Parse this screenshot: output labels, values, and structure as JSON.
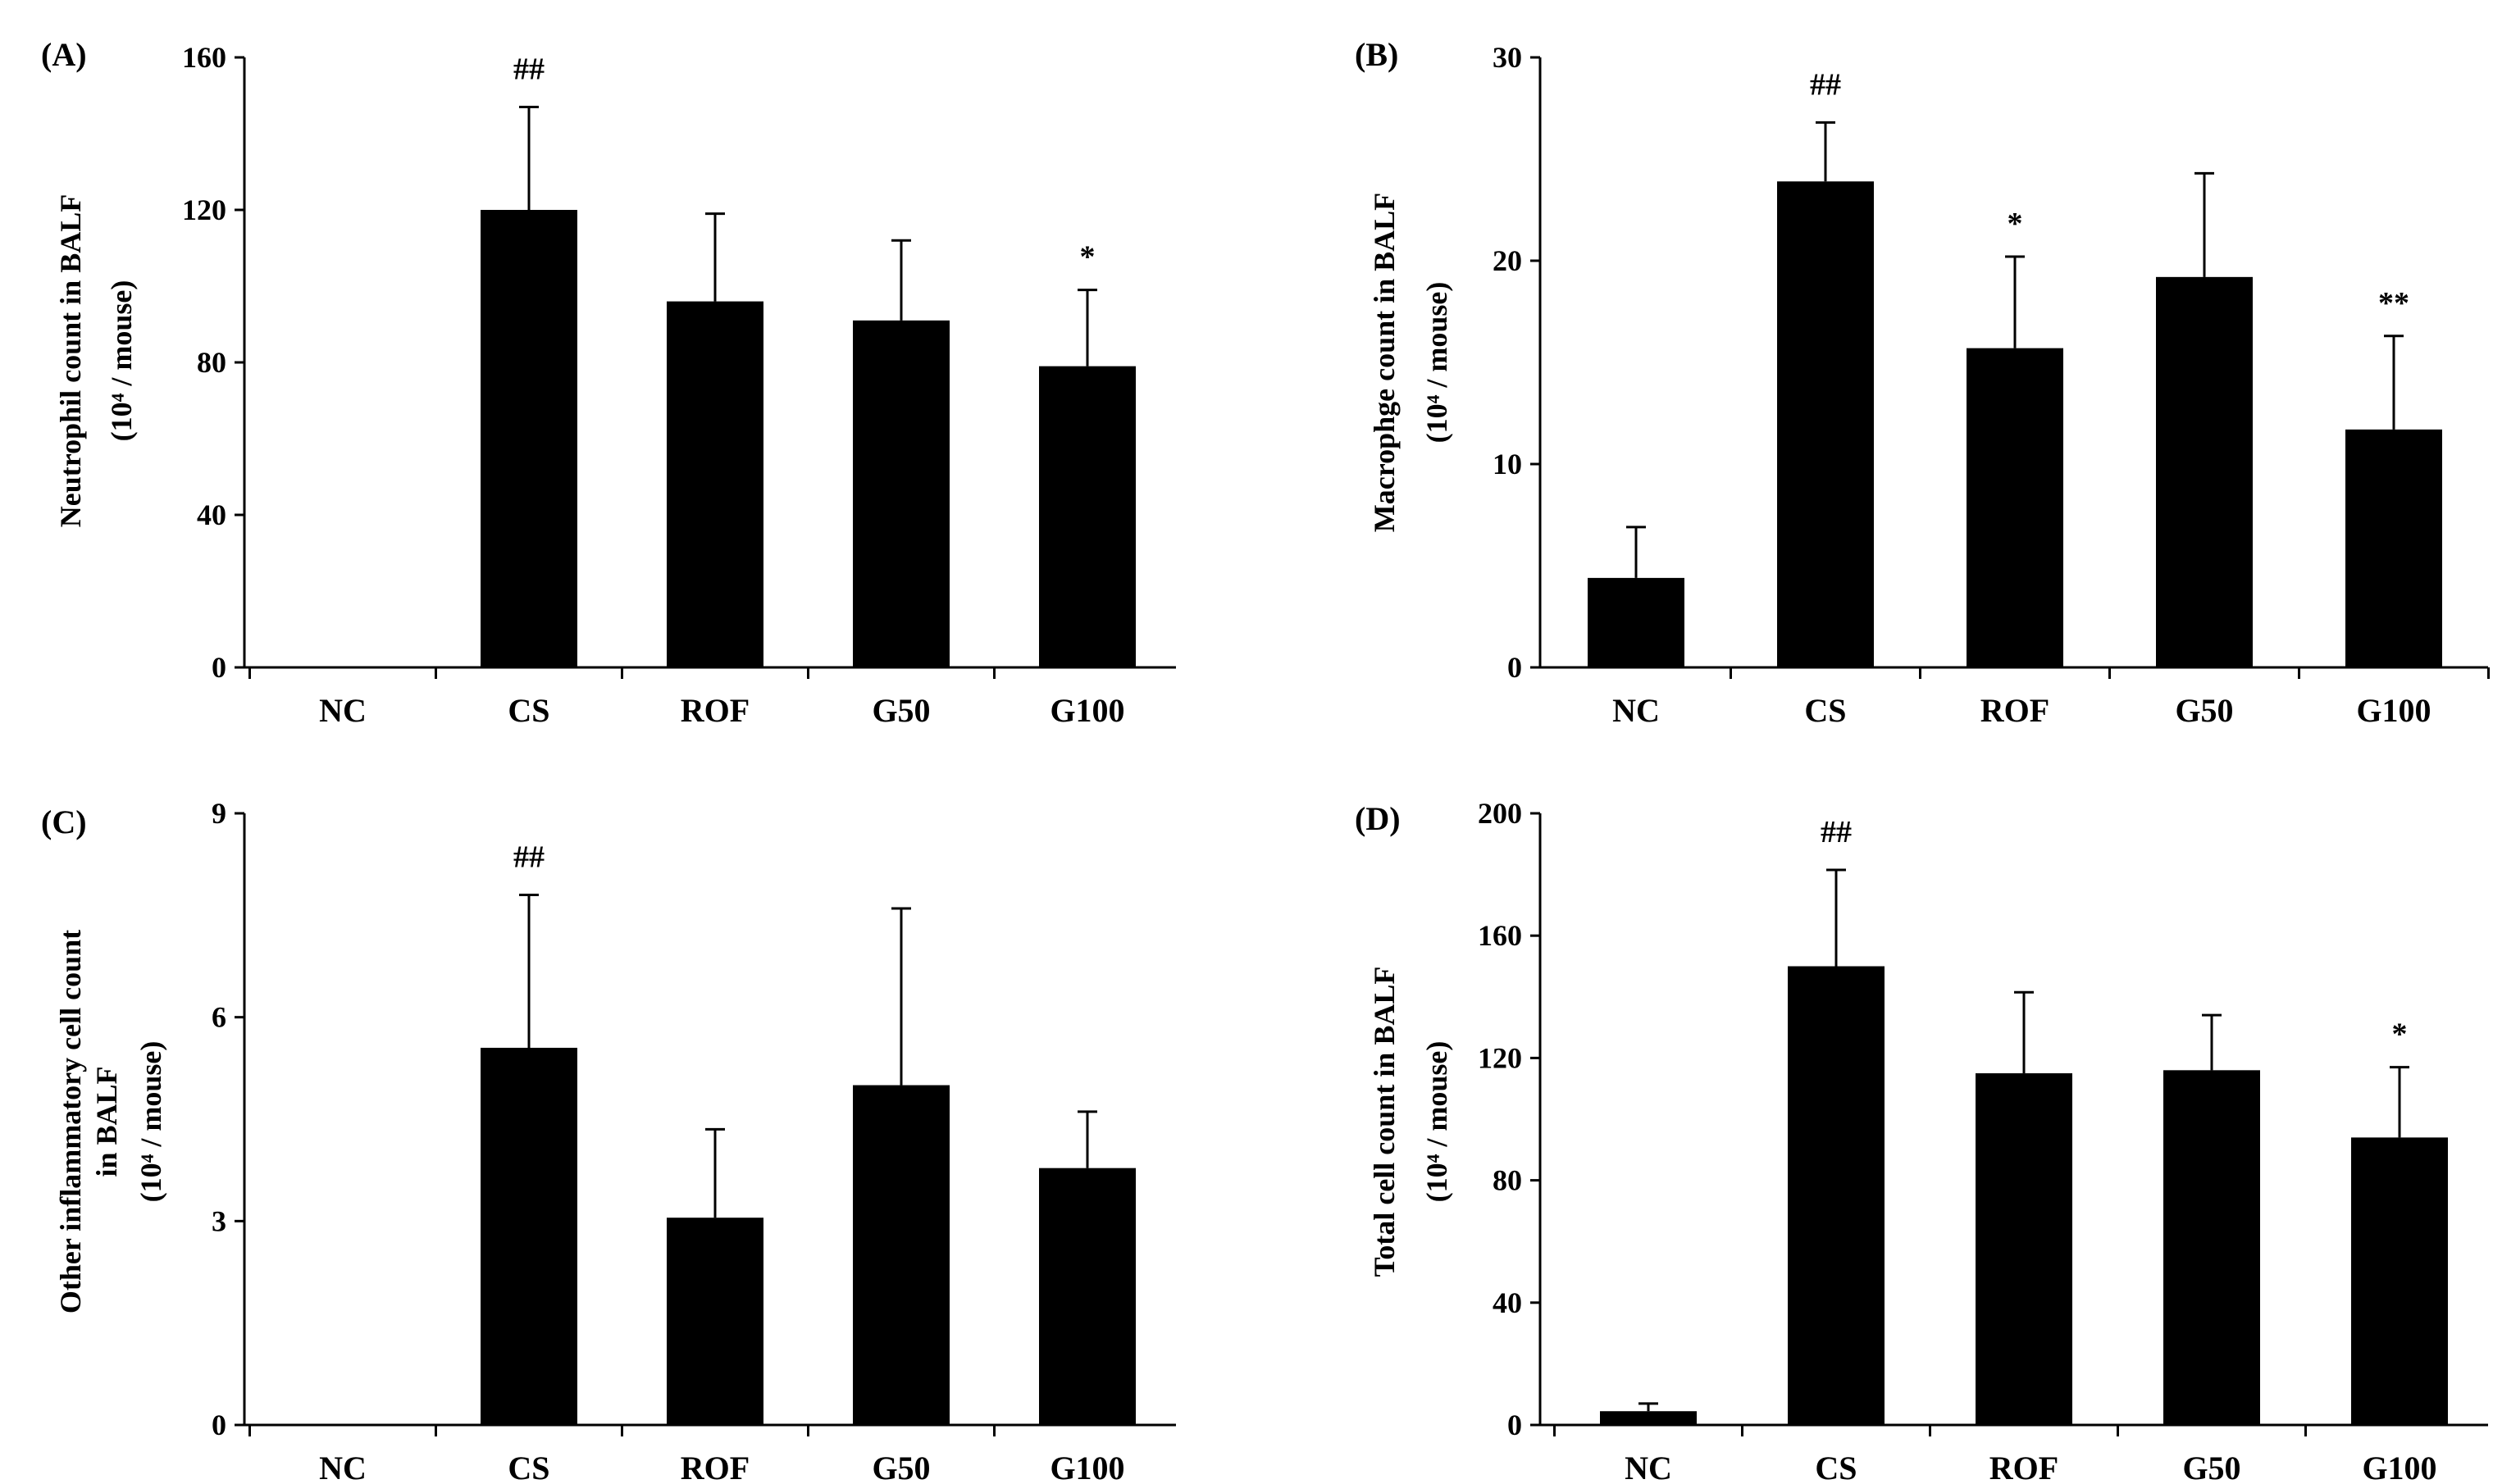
{
  "figure": {
    "colors": {
      "bar": "#000000",
      "axis": "#000000",
      "background": "#ffffff"
    }
  },
  "chart_data": [
    {
      "panel": "(A)",
      "type": "bar",
      "categories": [
        "NC",
        "CS",
        "ROF",
        "G50",
        "G100"
      ],
      "values": [
        0,
        120,
        96,
        91,
        79
      ],
      "errors": [
        0,
        27,
        23,
        21,
        20
      ],
      "significance": [
        "",
        "##",
        "",
        "",
        "*"
      ],
      "ylabel": "Neutrophil count in BALF",
      "ylabel_unit": "(10⁴ / mouse)",
      "ylabel_lines": [
        "Neutrophil count in BALF",
        "(10⁴ / mouse)"
      ],
      "ylim": [
        0,
        160
      ],
      "yticks": [
        0,
        40,
        80,
        120,
        160
      ]
    },
    {
      "panel": "(B)",
      "type": "bar",
      "categories": [
        "NC",
        "CS",
        "ROF",
        "G50",
        "G100"
      ],
      "values": [
        4.4,
        23.9,
        15.7,
        19.2,
        11.7
      ],
      "errors": [
        2.5,
        2.9,
        4.5,
        5.1,
        4.6
      ],
      "significance": [
        "",
        "##",
        "*",
        "",
        "**"
      ],
      "ylabel": "Macrophge count in BALF",
      "ylabel_unit": "(10⁴ / mouse)",
      "ylabel_lines": [
        "Macrophge count in BALF",
        "(10⁴ / mouse)"
      ],
      "ylim": [
        0,
        30
      ],
      "yticks": [
        0,
        10,
        20,
        30
      ]
    },
    {
      "panel": "(C)",
      "type": "bar",
      "categories": [
        "NC",
        "CS",
        "ROF",
        "G50",
        "G100"
      ],
      "values": [
        0,
        5.55,
        3.05,
        5.0,
        3.78
      ],
      "errors": [
        0,
        2.25,
        1.3,
        2.6,
        0.83
      ],
      "significance": [
        "",
        "##",
        "",
        "",
        ""
      ],
      "ylabel": "Other inflammatory cell count in BALF",
      "ylabel_unit": "(10⁴ / mouse)",
      "ylabel_lines": [
        "Other inflammatory cell count",
        "in BALF",
        "(10⁴ / mouse)"
      ],
      "ylim": [
        0,
        9
      ],
      "yticks": [
        0,
        3,
        6,
        9
      ]
    },
    {
      "panel": "(D)",
      "type": "bar",
      "categories": [
        "NC",
        "CS",
        "ROF",
        "G50",
        "G100"
      ],
      "values": [
        4.5,
        150,
        115,
        116,
        94
      ],
      "errors": [
        2.5,
        31.5,
        26.5,
        18,
        23
      ],
      "significance": [
        "",
        "##",
        "",
        "",
        "*"
      ],
      "ylabel": "Total cell count in BALF",
      "ylabel_unit": "(10⁴ / mouse)",
      "ylabel_lines": [
        "Total cell count in BALF",
        "(10⁴ / mouse)"
      ],
      "ylim": [
        0,
        200
      ],
      "yticks": [
        0,
        40,
        80,
        120,
        160,
        200
      ]
    }
  ]
}
